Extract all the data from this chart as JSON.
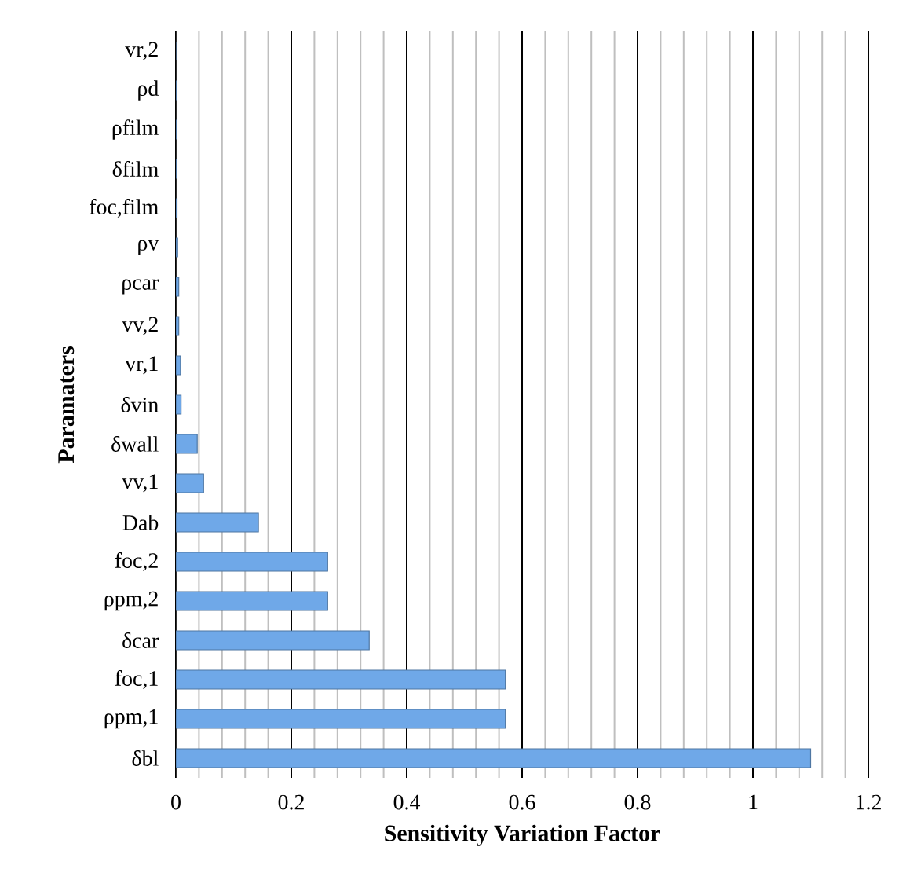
{
  "chart_data": {
    "type": "bar",
    "orientation": "horizontal",
    "xlabel": "Sensitivity Variation Factor",
    "ylabel": "Paramaters",
    "categories": [
      "vr,2",
      "ρd",
      "ρfilm",
      "δfilm",
      "foc,film",
      "ρv",
      "ρcar",
      "vv,2",
      "vr,1",
      "δvin",
      "δwall",
      "vv,1",
      "Dab",
      "foc,2",
      "ρpm,2",
      "δcar",
      "foc,1",
      "ρpm,1",
      "δbl"
    ],
    "values": [
      0,
      0.001,
      0.001,
      0.001,
      0.002,
      0.003,
      0.005,
      0.005,
      0.008,
      0.009,
      0.037,
      0.048,
      0.143,
      0.263,
      0.263,
      0.335,
      0.571,
      0.571,
      1.1
    ],
    "color": "#6fa8e8",
    "xlim": [
      0,
      1.2
    ],
    "xticks": [
      0,
      {
        "value": 0.04,
        "label": null
      },
      {
        "value": 0.08,
        "label": null
      },
      {
        "value": 0.12,
        "label": null
      },
      {
        "value": 0.16,
        "label": null
      },
      0.2,
      {
        "value": 0.24,
        "label": null
      },
      {
        "value": 0.28,
        "label": null
      },
      {
        "value": 0.32,
        "label": null
      },
      {
        "value": 0.36,
        "label": null
      },
      0.4,
      {
        "value": 0.44,
        "label": null
      },
      {
        "value": 0.48,
        "label": null
      },
      {
        "value": 0.52,
        "label": null
      },
      {
        "value": 0.56,
        "label": null
      },
      0.6,
      {
        "value": 0.64,
        "label": null
      },
      {
        "value": 0.68,
        "label": null
      },
      {
        "value": 0.72,
        "label": null
      },
      {
        "value": 0.76,
        "label": null
      },
      0.8,
      {
        "value": 0.84,
        "label": null
      },
      {
        "value": 0.88,
        "label": null
      },
      {
        "value": 0.92,
        "label": null
      },
      {
        "value": 0.96,
        "label": null
      },
      1,
      {
        "value": 1.04,
        "label": null
      },
      {
        "value": 1.08,
        "label": null
      },
      {
        "value": 1.12,
        "label": null
      },
      {
        "value": 1.16,
        "label": null
      },
      1.2
    ],
    "grid": "x"
  }
}
